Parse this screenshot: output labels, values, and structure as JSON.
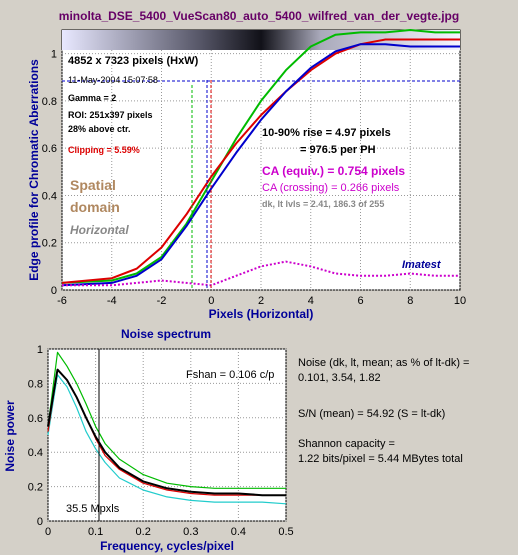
{
  "title": "minolta_DSE_5400_VueScan80_auto_5400_wilfred_van_der_vegte.jpg",
  "chart_data": [
    {
      "type": "line",
      "ylabel": "Edge profile for Chromatic Aberrations",
      "xlabel": "Pixels (Horizontal)",
      "xlim": [
        -6,
        10
      ],
      "ylim": [
        0,
        1.1
      ],
      "xticks": [
        "-6",
        "-4",
        "-2",
        "0",
        "2",
        "4",
        "6",
        "8",
        "10"
      ],
      "yticks": [
        "0",
        "0.2",
        "0.4",
        "0.6",
        "0.8",
        "1"
      ],
      "grid": true,
      "series": [
        {
          "color": "#00bb00",
          "x": [
            -6,
            -4,
            -3,
            -2,
            -1,
            0,
            1,
            2,
            3,
            4,
            5,
            6,
            7,
            8,
            9,
            10
          ],
          "y": [
            0.03,
            0.04,
            0.07,
            0.14,
            0.28,
            0.46,
            0.64,
            0.8,
            0.93,
            1.03,
            1.08,
            1.09,
            1.09,
            1.1,
            1.09,
            1.09
          ]
        },
        {
          "color": "#dd0000",
          "x": [
            -6,
            -4,
            -3,
            -2,
            -1,
            0,
            1,
            2,
            3,
            4,
            5,
            6,
            7,
            8,
            9,
            10
          ],
          "y": [
            0.03,
            0.05,
            0.09,
            0.18,
            0.32,
            0.48,
            0.62,
            0.74,
            0.84,
            0.93,
            1.0,
            1.04,
            1.06,
            1.06,
            1.06,
            1.06
          ]
        },
        {
          "color": "#0000cc",
          "x": [
            -6,
            -4,
            -3,
            -2,
            -1,
            0,
            1,
            2,
            3,
            4,
            5,
            6,
            7,
            8,
            9,
            10
          ],
          "y": [
            0.02,
            0.03,
            0.06,
            0.13,
            0.27,
            0.43,
            0.58,
            0.72,
            0.84,
            0.94,
            1.01,
            1.04,
            1.04,
            1.03,
            1.03,
            1.03
          ]
        },
        {
          "color": "#cc00cc",
          "dashed": true,
          "x": [
            -6,
            -4,
            -3,
            -2,
            -1,
            0,
            1,
            2,
            3,
            4,
            5,
            6,
            7,
            8,
            9,
            10
          ],
          "y": [
            0.02,
            0.02,
            0.03,
            0.04,
            0.03,
            0.02,
            0.06,
            0.1,
            0.12,
            0.1,
            0.07,
            0.06,
            0.06,
            0.07,
            0.06,
            0.06
          ]
        }
      ],
      "annotations": [
        "4852 x 7323 pixels (HxW)",
        "11-May-2004 15:07:58",
        "Gamma = 2",
        "ROI: 251x397 pixels",
        "28% above ctr.",
        "Clipping =  5.59%",
        "10-90% rise = 4.97 pixels",
        "= 976.5 per PH",
        "CA (equiv.) = 0.754 pixels",
        "CA (crossing) = 0.266 pixels",
        "dk, lt lvls = 2.41, 186.3 of 255",
        "Spatial",
        "domain",
        "Horizontal",
        "Imatest"
      ]
    },
    {
      "type": "line",
      "title": "Noise spectrum",
      "ylabel": "Noise power",
      "xlabel": "Frequency, cycles/pixel",
      "xlim": [
        0,
        0.5
      ],
      "ylim": [
        0,
        1
      ],
      "xticks": [
        "0",
        "0.1",
        "0.2",
        "0.3",
        "0.4",
        "0.5"
      ],
      "yticks": [
        "0",
        "0.2",
        "0.4",
        "0.6",
        "0.8",
        "1"
      ],
      "grid": true,
      "series": [
        {
          "color": "#00bb00",
          "x": [
            0,
            0.02,
            0.04,
            0.06,
            0.08,
            0.1,
            0.12,
            0.15,
            0.2,
            0.25,
            0.3,
            0.35,
            0.4,
            0.45,
            0.5
          ],
          "y": [
            0.55,
            0.98,
            0.9,
            0.8,
            0.68,
            0.55,
            0.45,
            0.36,
            0.27,
            0.22,
            0.2,
            0.19,
            0.19,
            0.19,
            0.19
          ]
        },
        {
          "color": "#22cccc",
          "x": [
            0,
            0.02,
            0.04,
            0.06,
            0.08,
            0.1,
            0.12,
            0.15,
            0.2,
            0.25,
            0.3,
            0.35,
            0.4,
            0.45,
            0.5
          ],
          "y": [
            0.5,
            0.85,
            0.78,
            0.66,
            0.52,
            0.42,
            0.34,
            0.25,
            0.18,
            0.14,
            0.12,
            0.11,
            0.11,
            0.11,
            0.1
          ]
        },
        {
          "color": "#dd0000",
          "x": [
            0,
            0.02,
            0.04,
            0.06,
            0.08,
            0.1,
            0.12,
            0.15,
            0.2,
            0.25,
            0.3,
            0.35,
            0.4,
            0.45,
            0.5
          ],
          "y": [
            0.52,
            0.88,
            0.82,
            0.72,
            0.6,
            0.48,
            0.38,
            0.3,
            0.22,
            0.18,
            0.16,
            0.15,
            0.15,
            0.15,
            0.15
          ]
        },
        {
          "color": "#000000",
          "x": [
            0,
            0.02,
            0.04,
            0.06,
            0.08,
            0.1,
            0.12,
            0.15,
            0.2,
            0.25,
            0.3,
            0.35,
            0.4,
            0.45,
            0.5
          ],
          "y": [
            0.55,
            0.88,
            0.82,
            0.72,
            0.6,
            0.49,
            0.4,
            0.31,
            0.23,
            0.19,
            0.17,
            0.16,
            0.16,
            0.15,
            0.15
          ]
        }
      ],
      "annotations": [
        "Fshan = 0.106 c/p",
        "35.5 Mpxls"
      ]
    }
  ],
  "side_text": {
    "noise_line1": "Noise (dk, lt, mean; as % of lt-dk) =",
    "noise_line2": "0.101,  3.54,  1.82",
    "sn": "S/N (mean) = 54.92  (S = lt-dk)",
    "shannon1": "Shannon capacity =",
    "shannon2": "1.22 bits/pixel = 5.44 MBytes total"
  }
}
